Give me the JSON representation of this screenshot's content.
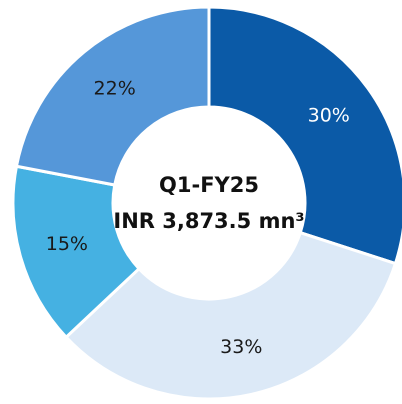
{
  "chart_data": {
    "type": "pie",
    "center_title": "Q1-FY25",
    "center_subtitle": "INR 3,873.5 mn³",
    "values": [
      30,
      33,
      15,
      22
    ],
    "value_labels": [
      "30%",
      "33%",
      "15%",
      "22%"
    ],
    "colors": [
      "#0b5aa7",
      "#dce9f7",
      "#45b1e2",
      "#5597d9"
    ],
    "label_colors": [
      "#ffffff",
      "#1a1a1a",
      "#1a1a1a",
      "#1a1a1a"
    ]
  }
}
